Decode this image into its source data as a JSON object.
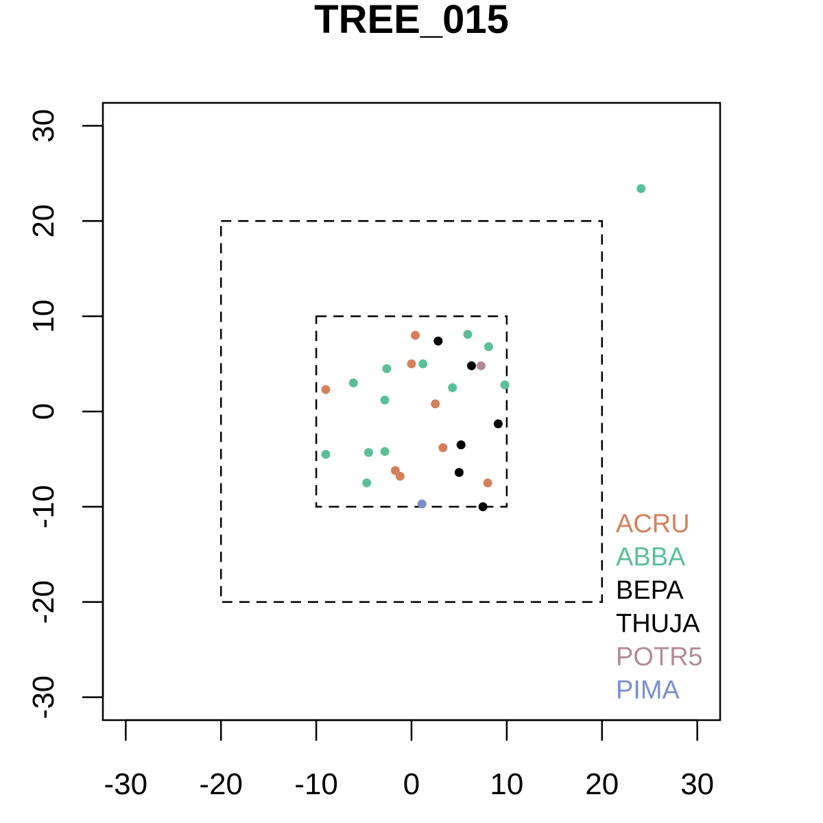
{
  "chart_data": {
    "type": "scatter",
    "title": "TREE_015",
    "xlabel": "",
    "ylabel": "",
    "xlim": [
      -32.4,
      32.4
    ],
    "ylim": [
      -32.4,
      32.4
    ],
    "x_ticks": [
      -30,
      -20,
      -10,
      0,
      10,
      20,
      30
    ],
    "y_ticks": [
      -30,
      -20,
      -10,
      0,
      10,
      20,
      30
    ],
    "grid": false,
    "legend_position": "bottom-right",
    "boundaries": [
      {
        "style": "dashed",
        "xmin": -20,
        "xmax": 20,
        "ymin": -20,
        "ymax": 20
      },
      {
        "style": "dashed",
        "xmin": -10,
        "xmax": 10,
        "ymin": -10,
        "ymax": 10
      }
    ],
    "series": [
      {
        "name": "ACRU",
        "color": "#d4805a",
        "points": [
          {
            "x": 0.4,
            "y": 8.0
          },
          {
            "x": 0.0,
            "y": 5.0
          },
          {
            "x": -9.0,
            "y": 2.3
          },
          {
            "x": 2.5,
            "y": 0.8
          },
          {
            "x": 3.3,
            "y": -3.8
          },
          {
            "x": -1.7,
            "y": -6.2
          },
          {
            "x": -1.2,
            "y": -6.8
          },
          {
            "x": 8.0,
            "y": -7.5
          }
        ]
      },
      {
        "name": "ABBA",
        "color": "#5bbf98",
        "points": [
          {
            "x": 5.9,
            "y": 8.1
          },
          {
            "x": 8.1,
            "y": 6.8
          },
          {
            "x": 1.2,
            "y": 5.0
          },
          {
            "x": -2.6,
            "y": 4.5
          },
          {
            "x": -6.1,
            "y": 3.0
          },
          {
            "x": 4.3,
            "y": 2.5
          },
          {
            "x": 9.8,
            "y": 2.8
          },
          {
            "x": -2.8,
            "y": 1.2
          },
          {
            "x": -9.0,
            "y": -4.5
          },
          {
            "x": -4.5,
            "y": -4.3
          },
          {
            "x": -2.8,
            "y": -4.2
          },
          {
            "x": -4.7,
            "y": -7.5
          },
          {
            "x": 24.1,
            "y": 23.4
          }
        ]
      },
      {
        "name": "BEPA",
        "color": "#000000",
        "points": [
          {
            "x": 2.8,
            "y": 7.4
          },
          {
            "x": 6.3,
            "y": 4.8
          },
          {
            "x": 9.1,
            "y": -1.3
          },
          {
            "x": 5.2,
            "y": -3.5
          },
          {
            "x": 5.0,
            "y": -6.4
          },
          {
            "x": 7.5,
            "y": -10.0
          }
        ]
      },
      {
        "name": "THUJA",
        "color": "#000000",
        "points": []
      },
      {
        "name": "POTR5",
        "color": "#b38a9a",
        "points": [
          {
            "x": 7.3,
            "y": 4.8
          }
        ]
      },
      {
        "name": "PIMA",
        "color": "#7b8fc8",
        "points": [
          {
            "x": 1.1,
            "y": -9.7
          }
        ]
      }
    ]
  }
}
